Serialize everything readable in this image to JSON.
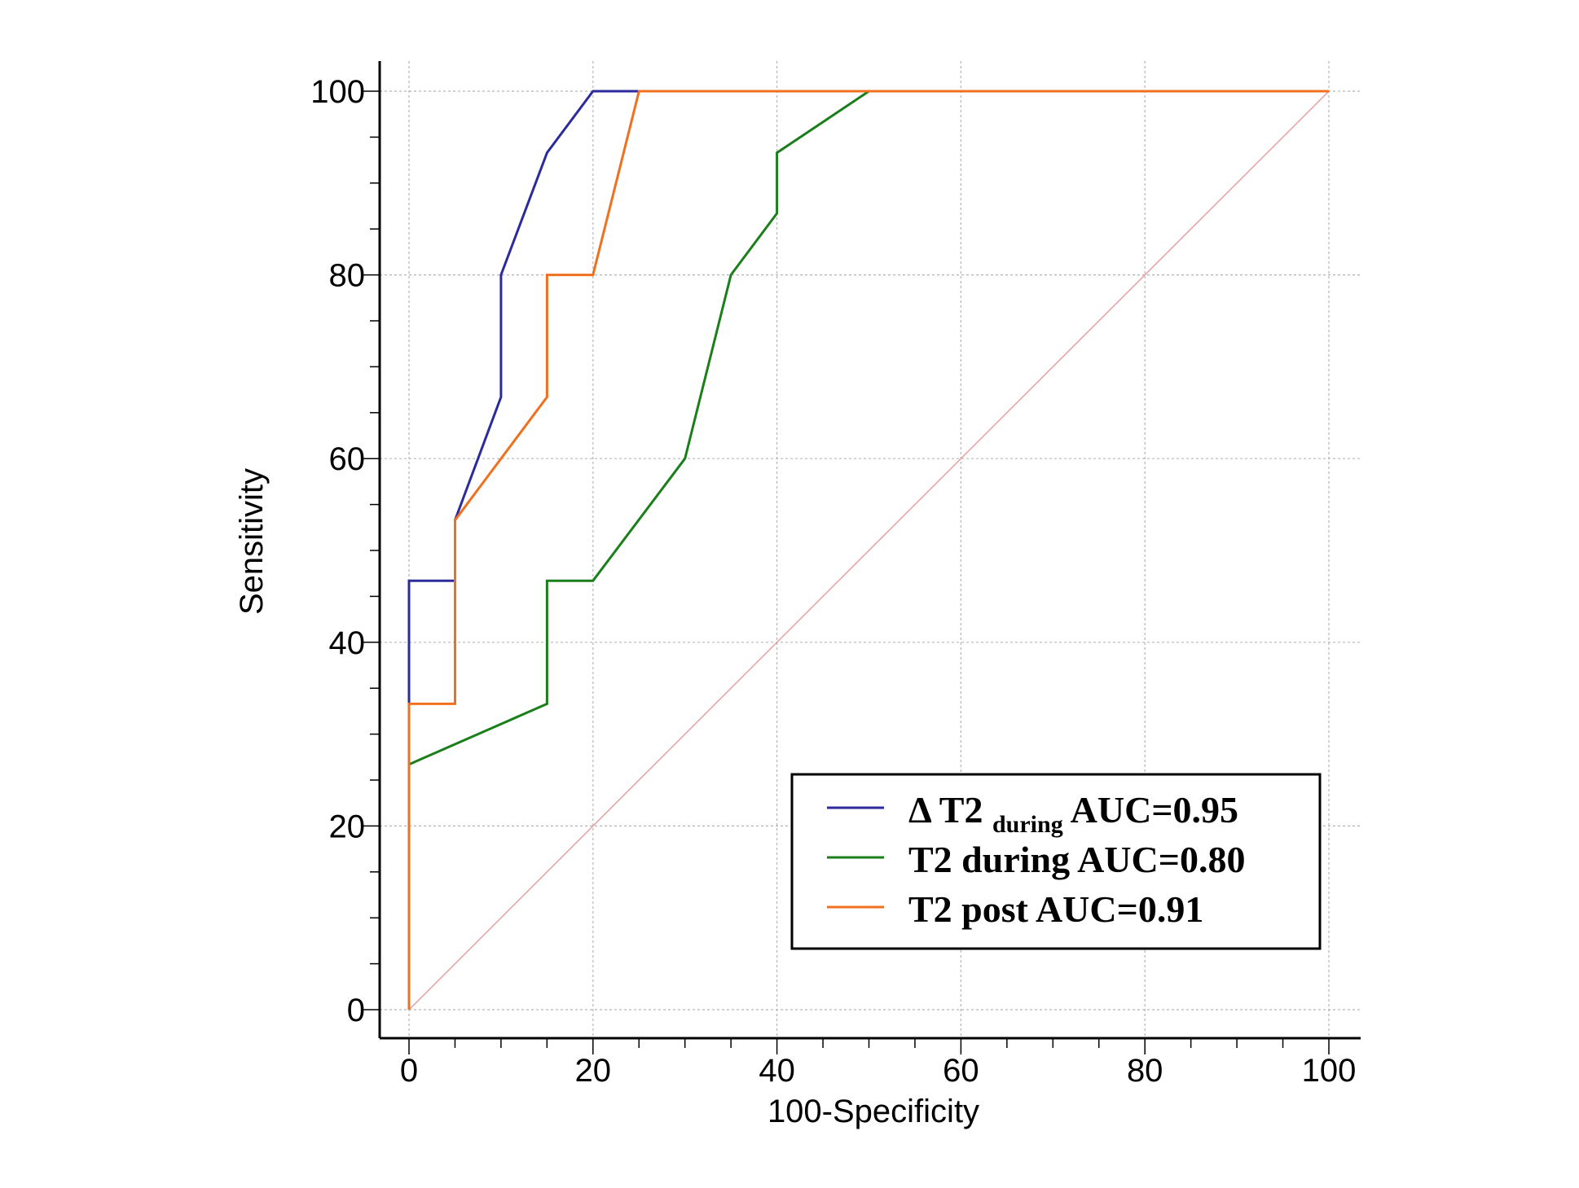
{
  "chart_data": {
    "type": "line",
    "title": "",
    "xlabel": "100-Specificity",
    "ylabel": "Sensitivity",
    "xlim": [
      0,
      100
    ],
    "ylim": [
      0,
      100
    ],
    "x_ticks": [
      "0",
      "20",
      "40",
      "60",
      "80",
      "100"
    ],
    "y_ticks": [
      "0",
      "20",
      "40",
      "60",
      "80",
      "100"
    ],
    "grid": true,
    "legend_position": "bottom-right",
    "series": [
      {
        "name": "Δ T2 during AUC=0.95",
        "legend_main": "Δ T2 ",
        "legend_sub": "during",
        "legend_rest": " AUC=0.95",
        "color": "#2b2b9c",
        "points": [
          [
            0,
            0
          ],
          [
            0,
            33.3
          ],
          [
            0,
            46.7
          ],
          [
            5,
            46.7
          ],
          [
            5,
            53.3
          ],
          [
            10,
            66.7
          ],
          [
            10,
            80
          ],
          [
            15,
            93.3
          ],
          [
            20,
            100
          ],
          [
            25,
            100
          ],
          [
            100,
            100
          ]
        ]
      },
      {
        "name": "T2 during AUC=0.80",
        "legend_main": "T2 during AUC=0.80",
        "legend_sub": "",
        "legend_rest": "",
        "color": "#1a7f1a",
        "points": [
          [
            0,
            0
          ],
          [
            0,
            26.7
          ],
          [
            15,
            33.3
          ],
          [
            15,
            46.7
          ],
          [
            20,
            46.7
          ],
          [
            30,
            60
          ],
          [
            35,
            80
          ],
          [
            40,
            86.7
          ],
          [
            40,
            93.3
          ],
          [
            50,
            100
          ],
          [
            100,
            100
          ]
        ]
      },
      {
        "name": "T2 post AUC=0.91",
        "legend_main": "T2 post AUC=0.91",
        "legend_sub": "",
        "legend_rest": "",
        "color": "#f07020",
        "points": [
          [
            0,
            0
          ],
          [
            0,
            33.3
          ],
          [
            5,
            33.3
          ],
          [
            5,
            53.3
          ],
          [
            15,
            66.7
          ],
          [
            15,
            80
          ],
          [
            20,
            80
          ],
          [
            25,
            100
          ],
          [
            100,
            100
          ]
        ]
      }
    ],
    "reference_line": {
      "color": "#e8a0a0",
      "points": [
        [
          0,
          0
        ],
        [
          100,
          100
        ]
      ]
    }
  }
}
